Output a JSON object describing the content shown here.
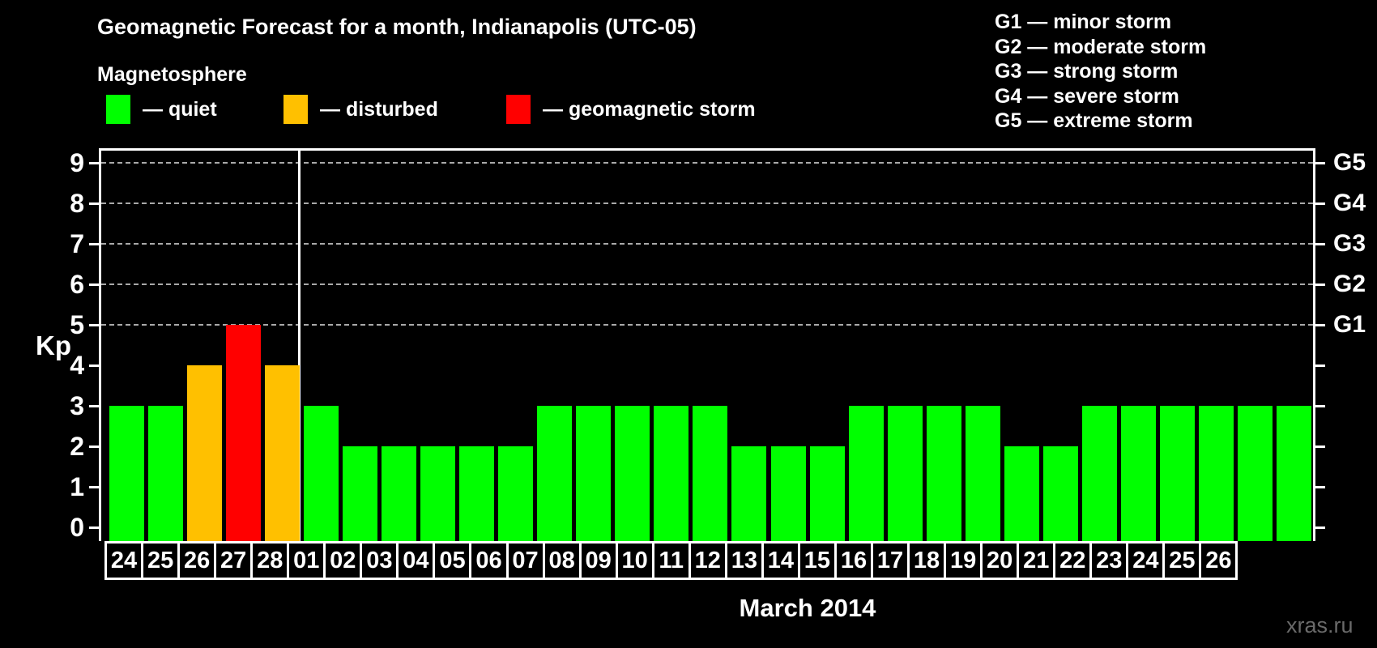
{
  "header": {
    "title": "Geomagnetic Forecast for a month, Indianapolis (UTC-05)",
    "subtitle": "Magnetosphere"
  },
  "legend": [
    {
      "status": "quiet",
      "label": "— quiet",
      "color": "#00ff00"
    },
    {
      "status": "disturbed",
      "label": "— disturbed",
      "color": "#ffc000"
    },
    {
      "status": "storm",
      "label": "— geomagnetic storm",
      "color": "#ff0000"
    }
  ],
  "g_scale_legend": [
    "G1 — minor storm",
    "G2 — moderate storm",
    "G3 — strong storm",
    "G4 — severe storm",
    "G5 — extreme storm"
  ],
  "chart_data": {
    "type": "bar",
    "title": "Geomagnetic Forecast for a month, Indianapolis (UTC-05)",
    "ylabel": "Kp",
    "xlabel": "March 2014",
    "ylim": [
      0,
      9
    ],
    "yticks": [
      0,
      1,
      2,
      3,
      4,
      5,
      6,
      7,
      8,
      9
    ],
    "gridlines_at": [
      5,
      6,
      7,
      8,
      9
    ],
    "grid": "dashed horizontal at storm levels only",
    "right_axis": [
      {
        "value": 5,
        "label": "G1"
      },
      {
        "value": 6,
        "label": "G2"
      },
      {
        "value": 7,
        "label": "G3"
      },
      {
        "value": 8,
        "label": "G4"
      },
      {
        "value": 9,
        "label": "G5"
      }
    ],
    "separator_after_index": 4,
    "categories": [
      "24",
      "25",
      "26",
      "27",
      "28",
      "01",
      "02",
      "03",
      "04",
      "05",
      "06",
      "07",
      "08",
      "09",
      "10",
      "11",
      "12",
      "13",
      "14",
      "15",
      "16",
      "17",
      "18",
      "19",
      "20",
      "21",
      "22",
      "23",
      "24",
      "25",
      "26"
    ],
    "values": [
      3,
      3,
      4,
      5,
      4,
      3,
      2,
      2,
      2,
      2,
      2,
      3,
      3,
      3,
      3,
      3,
      2,
      2,
      2,
      3,
      3,
      3,
      3,
      2,
      2,
      3,
      3,
      3,
      3,
      3,
      3
    ],
    "statuses": [
      "quiet",
      "quiet",
      "disturbed",
      "storm",
      "disturbed",
      "quiet",
      "quiet",
      "quiet",
      "quiet",
      "quiet",
      "quiet",
      "quiet",
      "quiet",
      "quiet",
      "quiet",
      "quiet",
      "quiet",
      "quiet",
      "quiet",
      "quiet",
      "quiet",
      "quiet",
      "quiet",
      "quiet",
      "quiet",
      "quiet",
      "quiet",
      "quiet",
      "quiet",
      "quiet",
      "quiet"
    ],
    "status_colors": {
      "quiet": "#00ff00",
      "disturbed": "#ffc000",
      "storm": "#ff0000"
    }
  },
  "footer": {
    "xlabel": "March 2014",
    "watermark": "xras.ru"
  }
}
